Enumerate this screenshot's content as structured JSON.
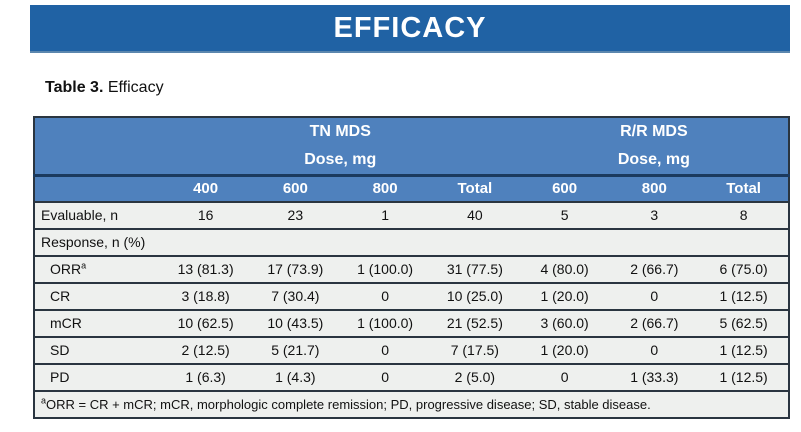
{
  "banner": {
    "title": "EFFICACY"
  },
  "caption": {
    "prefix": "Table 3.",
    "text": " Efficacy"
  },
  "colors": {
    "banner_blue": "#2062a4",
    "header_blue": "#4f81bd",
    "divider_navy": "#1b3a5e",
    "body_row_bg": "#eef0ee",
    "row_border": "#2a3540",
    "header_text": "#ffffff"
  },
  "table": {
    "groups": [
      {
        "label": "TN MDS",
        "sublabel": "Dose, mg"
      },
      {
        "label": "R/R MDS",
        "sublabel": "Dose, mg"
      }
    ],
    "dose_headers": [
      "400",
      "600",
      "800",
      "Total",
      "600",
      "800",
      "Total"
    ],
    "rows": [
      {
        "label": "Evaluable, n",
        "values": [
          "16",
          "23",
          "1",
          "40",
          "5",
          "3",
          "8"
        ]
      },
      {
        "label": "Response, n (%)"
      },
      {
        "label": "ORR",
        "label_sup": "a",
        "values": [
          "13 (81.3)",
          "17 (73.9)",
          "1 (100.0)",
          "31 (77.5)",
          "4 (80.0)",
          "2 (66.7)",
          "6 (75.0)"
        ]
      },
      {
        "label": "CR",
        "values": [
          "3 (18.8)",
          "7 (30.4)",
          "0",
          "10 (25.0)",
          "1 (20.0)",
          "0",
          "1 (12.5)"
        ]
      },
      {
        "label": "mCR",
        "values": [
          "10 (62.5)",
          "10 (43.5)",
          "1 (100.0)",
          "21 (52.5)",
          "3 (60.0)",
          "2 (66.7)",
          "5 (62.5)"
        ]
      },
      {
        "label": "SD",
        "values": [
          "2 (12.5)",
          "5 (21.7)",
          "0",
          "7 (17.5)",
          "1 (20.0)",
          "0",
          "1 (12.5)"
        ]
      },
      {
        "label": "PD",
        "values": [
          "1 (6.3)",
          "1 (4.3)",
          "0",
          "2 (5.0)",
          "0",
          "1 (33.3)",
          "1 (12.5)"
        ]
      }
    ],
    "footnote": {
      "sup": "a",
      "text": "ORR = CR + mCR; mCR, morphologic complete remission; PD, progressive disease; SD, stable disease."
    }
  }
}
